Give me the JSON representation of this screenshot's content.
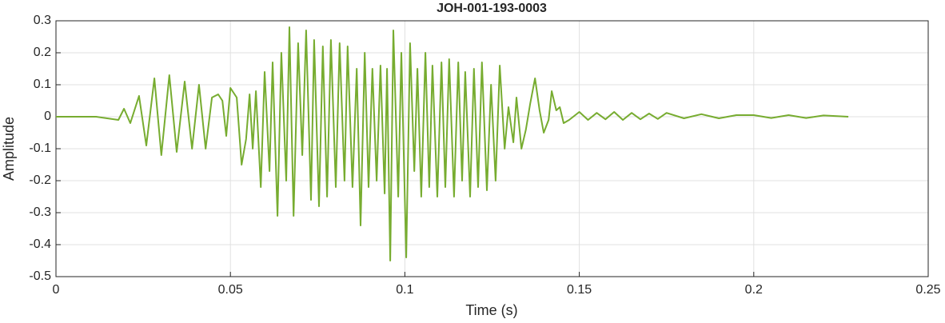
{
  "chart_data": {
    "type": "line",
    "title": "JOH-001-193-0003",
    "xlabel": "Time (s)",
    "ylabel": "Amplitude",
    "x": [
      0,
      0.0115,
      0.0179,
      0.0195,
      0.0213,
      0.0238,
      0.0259,
      0.0282,
      0.0302,
      0.0325,
      0.0346,
      0.0369,
      0.039,
      0.041,
      0.0429,
      0.0447,
      0.0465,
      0.0477,
      0.0488,
      0.05,
      0.0518,
      0.0532,
      0.0545,
      0.0555,
      0.0564,
      0.0573,
      0.0587,
      0.0598,
      0.0612,
      0.0621,
      0.0635,
      0.0646,
      0.066,
      0.0669,
      0.0681,
      0.0694,
      0.0706,
      0.0717,
      0.0731,
      0.074,
      0.0754,
      0.0765,
      0.0777,
      0.0788,
      0.0802,
      0.0813,
      0.0827,
      0.0836,
      0.085,
      0.0862,
      0.0873,
      0.0885,
      0.0896,
      0.0907,
      0.0919,
      0.093,
      0.0942,
      0.0949,
      0.0958,
      0.0967,
      0.0981,
      0.099,
      0.1004,
      0.1015,
      0.1027,
      0.1036,
      0.1047,
      0.1059,
      0.107,
      0.1079,
      0.1093,
      0.1105,
      0.1116,
      0.1127,
      0.1141,
      0.1153,
      0.1164,
      0.1173,
      0.1187,
      0.1198,
      0.121,
      0.1221,
      0.1235,
      0.1247,
      0.126,
      0.1272,
      0.1286,
      0.1297,
      0.1311,
      0.132,
      0.1334,
      0.1347,
      0.1359,
      0.1373,
      0.1386,
      0.1398,
      0.1412,
      0.1421,
      0.1434,
      0.1444,
      0.1455,
      0.1471,
      0.15,
      0.1525,
      0.155,
      0.1575,
      0.16,
      0.1625,
      0.165,
      0.1675,
      0.17,
      0.1725,
      0.175,
      0.18,
      0.185,
      0.19,
      0.195,
      0.2,
      0.205,
      0.21,
      0.215,
      0.22,
      0.2271
    ],
    "series": [
      {
        "name": "Amplitude",
        "color": "#77ac30",
        "values": [
          0,
          0,
          -0.01,
          0.025,
          -0.02,
          0.065,
          -0.09,
          0.12,
          -0.12,
          0.13,
          -0.11,
          0.11,
          -0.1,
          0.1,
          -0.1,
          0.06,
          0.07,
          0.05,
          -0.06,
          0.09,
          0.06,
          -0.15,
          -0.07,
          0.07,
          -0.1,
          0.08,
          -0.22,
          0.14,
          -0.17,
          0.17,
          -0.31,
          0.2,
          -0.2,
          0.28,
          -0.31,
          0.23,
          -0.12,
          0.27,
          -0.26,
          0.24,
          -0.28,
          0.22,
          -0.25,
          0.24,
          -0.22,
          0.23,
          -0.2,
          0.22,
          -0.22,
          0.15,
          -0.34,
          0.2,
          -0.22,
          0.15,
          -0.2,
          0.16,
          -0.24,
          0.15,
          -0.45,
          0.27,
          -0.25,
          0.2,
          -0.44,
          0.23,
          -0.17,
          0.15,
          -0.25,
          0.2,
          -0.22,
          0.16,
          -0.25,
          0.17,
          -0.22,
          0.18,
          -0.25,
          0.17,
          -0.2,
          0.14,
          -0.25,
          0.15,
          -0.22,
          0.17,
          -0.23,
          0.1,
          -0.2,
          0.16,
          -0.1,
          0.03,
          -0.08,
          0.06,
          -0.1,
          -0.04,
          0.04,
          0.12,
          0.02,
          -0.05,
          -0.01,
          0.08,
          0.02,
          0.03,
          -0.02,
          -0.01,
          0.015,
          -0.01,
          0.012,
          -0.008,
          0.015,
          -0.01,
          0.012,
          -0.008,
          0.01,
          -0.007,
          0.012,
          -0.005,
          0.008,
          -0.005,
          0.005,
          0.005,
          -0.004,
          0.005,
          -0.004,
          0.004,
          0
        ]
      }
    ],
    "xlim": [
      0,
      0.25
    ],
    "xticks": [
      0,
      0.05,
      0.1,
      0.15,
      0.2,
      0.25
    ],
    "ylim": [
      -0.5,
      0.3
    ],
    "yticks": [
      0.3,
      0.2,
      0.1,
      0,
      -0.1,
      -0.2,
      -0.3,
      -0.4,
      -0.5
    ],
    "grid": true
  }
}
